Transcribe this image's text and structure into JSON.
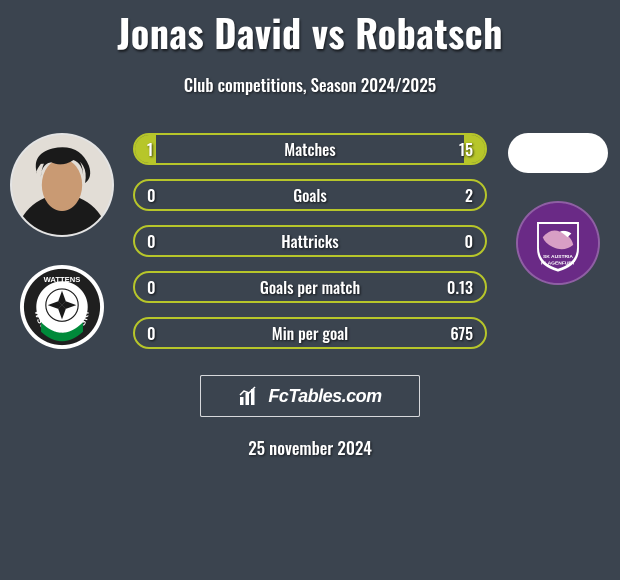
{
  "header": {
    "title": "Jonas David vs Robatsch",
    "subtitle": "Club competitions, Season 2024/2025"
  },
  "colors": {
    "background": "#3b444f",
    "bar_border": "#b7c62a",
    "bar_fill": "#b7c62a",
    "text": "#ffffff"
  },
  "bars": [
    {
      "label": "Matches",
      "left": "1",
      "right": "15",
      "left_pct": 6,
      "right_pct": 6
    },
    {
      "label": "Goals",
      "left": "0",
      "right": "2",
      "left_pct": 0,
      "right_pct": 0
    },
    {
      "label": "Hattricks",
      "left": "0",
      "right": "0",
      "left_pct": 0,
      "right_pct": 0
    },
    {
      "label": "Goals per match",
      "left": "0",
      "right": "0.13",
      "left_pct": 0,
      "right_pct": 0
    },
    {
      "label": "Min per goal",
      "left": "0",
      "right": "675",
      "left_pct": 0,
      "right_pct": 0
    }
  ],
  "watermark": {
    "text": "FcTables.com"
  },
  "date": "25 november 2024",
  "left_player": {
    "has_photo": true,
    "badge": {
      "name": "WSG Swarovski Wattens",
      "ring_color": "#1f1f1f",
      "text_color": "#ffffff",
      "accent_color": "#008a3a"
    }
  },
  "right_player": {
    "has_photo": false,
    "badge": {
      "name": "SK Austria Klagenfurt",
      "bg_color": "#6a2a86",
      "shape_color": "#ffffff",
      "accent_color": "#d89fc5"
    }
  }
}
